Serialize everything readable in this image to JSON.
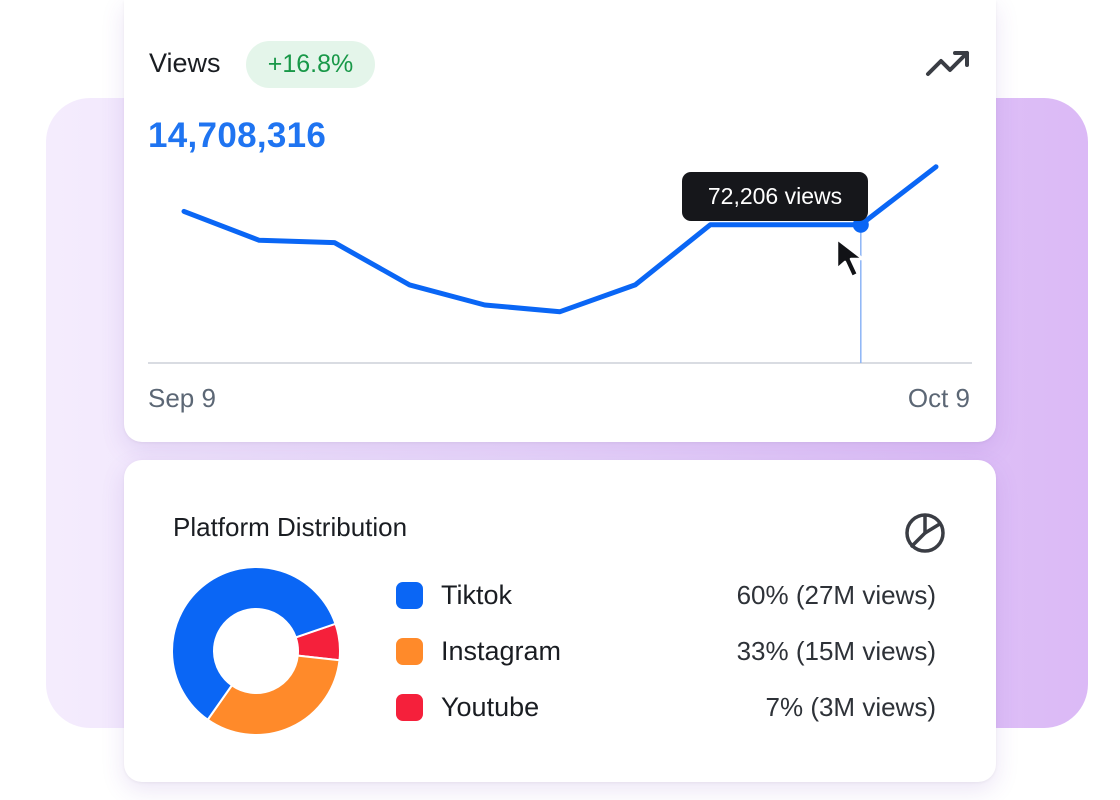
{
  "views_card": {
    "title": "Views",
    "change_badge": "+16.8%",
    "total": "14,708,316",
    "icon": "trending-up-icon",
    "tooltip": "72,206 views",
    "x_start_label": "Sep 9",
    "x_end_label": "Oct 9",
    "colors": {
      "line": "#0a66f5",
      "badge_bg": "#e4f5ea",
      "badge_text": "#189848",
      "total": "#1f74f1"
    }
  },
  "chart_data": [
    {
      "type": "line",
      "x": [
        "Sep 9",
        "",
        "",
        "",
        "",
        "",
        "",
        "",
        "",
        "",
        "Oct 9"
      ],
      "series": [
        {
          "values": [
            68,
            55,
            54,
            35,
            26,
            23,
            35,
            62,
            62,
            62,
            88
          ]
        }
      ],
      "ylim": [
        0,
        100
      ],
      "highlighted_index": 9,
      "highlighted_label": "72,206 views",
      "grid": false
    },
    {
      "type": "pie",
      "categories": [
        "Tiktok",
        "Instagram",
        "Youtube"
      ],
      "values": [
        60,
        33,
        7
      ],
      "colors": [
        "#0a66f5",
        "#ff8a2a",
        "#f5203b"
      ],
      "donut": true
    }
  ],
  "distribution_card": {
    "title": "Platform Distribution",
    "icon": "pie-chart-icon",
    "items": [
      {
        "label": "Tiktok",
        "value": "60% (27M views)",
        "color": "#0a66f5"
      },
      {
        "label": "Instagram",
        "value": "33% (15M views)",
        "color": "#ff8a2a"
      },
      {
        "label": "Youtube",
        "value": "7% (3M views)",
        "color": "#f5203b"
      }
    ]
  }
}
